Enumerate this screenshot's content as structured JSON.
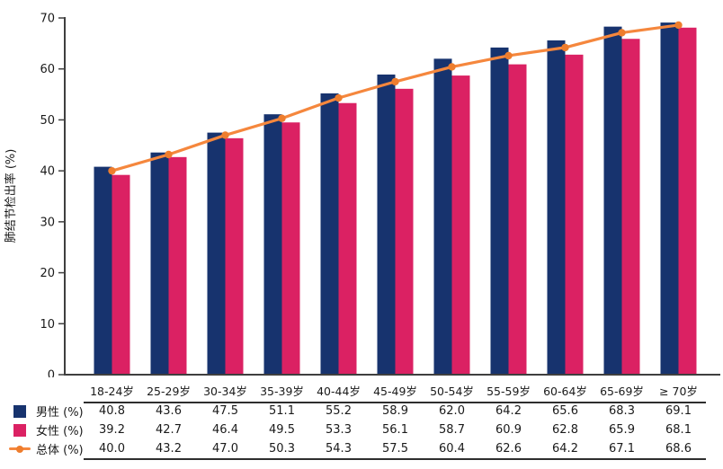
{
  "chart_data": {
    "type": "bar",
    "title": "",
    "ylabel": "肺结节检出率 (%)",
    "xlabel": "",
    "ylim": [
      0,
      70
    ],
    "yticks": [
      0,
      10,
      20,
      30,
      40,
      50,
      60,
      70
    ],
    "grid": false,
    "legend_position": "table-left-of-rows",
    "categories": [
      "18-24岁",
      "25-29岁",
      "30-34岁",
      "35-39岁",
      "40-44岁",
      "45-49岁",
      "50-54岁",
      "55-59岁",
      "60-64岁",
      "65-69岁",
      "≥ 70岁"
    ],
    "series": [
      {
        "name": "男性 (%)",
        "type": "bar",
        "color": "#17336e",
        "values": [
          40.8,
          43.6,
          47.5,
          51.1,
          55.2,
          58.9,
          62.0,
          64.2,
          65.6,
          68.3,
          69.1
        ]
      },
      {
        "name": "女性 (%)",
        "type": "bar",
        "color": "#db2163",
        "values": [
          39.2,
          42.7,
          46.4,
          49.5,
          53.3,
          56.1,
          58.7,
          60.9,
          62.8,
          65.9,
          68.1
        ]
      },
      {
        "name": "总体 (%)",
        "type": "line",
        "color": "#f5873d",
        "marker_color": "#ee7d2d",
        "values": [
          40.0,
          43.2,
          47.0,
          50.3,
          54.3,
          57.5,
          60.4,
          62.6,
          64.2,
          67.1,
          68.6
        ]
      }
    ],
    "axis_color": "#3f3f3f",
    "text_color": "#1a1a1a"
  }
}
